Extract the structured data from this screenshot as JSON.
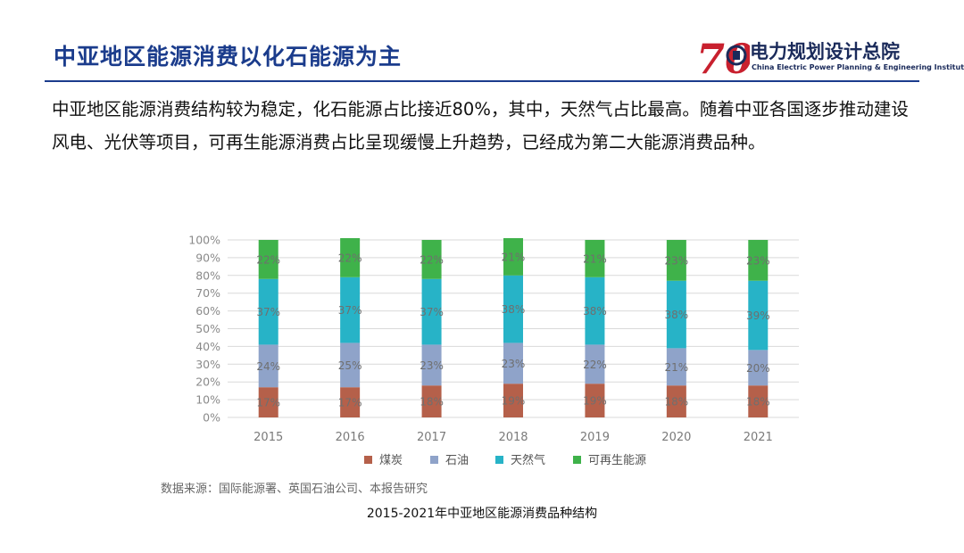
{
  "header": {
    "title": "中亚地区能源消费以化石能源为主",
    "logo_mark_text": "70",
    "logo_cn": "电力规划设计总院",
    "logo_en": "China Electric Power Planning & Engineering Institute",
    "accent_color": "#1b3c8c",
    "logo_color": "#c8202e"
  },
  "intro": "中亚地区能源消费结构较为稳定，化石能源占比接近80%，其中，天然气占比最高。随着中亚各国逐步推动建设风电、光伏等项目，可再生能源消费占比呈现缓慢上升趋势，已经成为第二大能源消费品种。",
  "chart_data": {
    "type": "bar",
    "stacked": true,
    "categories": [
      "2015",
      "2016",
      "2017",
      "2018",
      "2019",
      "2020",
      "2021"
    ],
    "series": [
      {
        "name": "煤炭",
        "color": "#b5604a",
        "values": [
          17,
          17,
          18,
          19,
          19,
          18,
          18
        ]
      },
      {
        "name": "石油",
        "color": "#8fa3c9",
        "values": [
          24,
          25,
          23,
          23,
          22,
          21,
          20
        ]
      },
      {
        "name": "天然气",
        "color": "#27b3c7",
        "values": [
          37,
          37,
          37,
          38,
          38,
          38,
          39
        ]
      },
      {
        "name": "可再生能源",
        "color": "#3fb24a",
        "values": [
          22,
          22,
          22,
          21,
          21,
          23,
          23
        ]
      }
    ],
    "data_labels": [
      [
        "17%",
        "17%",
        "18%",
        "19%",
        "19%",
        "18%",
        "18%"
      ],
      [
        "24%",
        "25%",
        "23%",
        "23%",
        "22%",
        "21%",
        "20%"
      ],
      [
        "37%",
        "37%",
        "37%",
        "38%",
        "38%",
        "38%",
        "39%"
      ],
      [
        "22%",
        "22%",
        "22%",
        "21%",
        "21%",
        "23%",
        "23%"
      ]
    ],
    "ylim": [
      0,
      100
    ],
    "yticks": [
      "0%",
      "10%",
      "20%",
      "30%",
      "40%",
      "50%",
      "60%",
      "70%",
      "80%",
      "90%",
      "100%"
    ],
    "grid": true,
    "legend_position": "bottom",
    "title": "",
    "xlabel": "",
    "ylabel": ""
  },
  "source": "数据来源：国际能源署、英国石油公司、本报告研究",
  "caption": "2015-2021年中亚地区能源消费品种结构"
}
